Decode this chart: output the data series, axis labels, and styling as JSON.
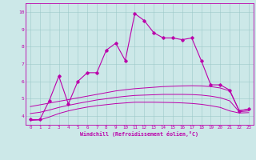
{
  "xlabel": "Windchill (Refroidissement éolien,°C)",
  "bg_color": "#cce8e8",
  "line_color": "#bb00aa",
  "xlim": [
    -0.5,
    23.5
  ],
  "ylim": [
    3.5,
    10.5
  ],
  "xticks": [
    0,
    1,
    2,
    3,
    4,
    5,
    6,
    7,
    8,
    9,
    10,
    11,
    12,
    13,
    14,
    15,
    16,
    17,
    18,
    19,
    20,
    21,
    22,
    23
  ],
  "yticks": [
    4,
    5,
    6,
    7,
    8,
    9,
    10
  ],
  "main_line_x": [
    0,
    1,
    2,
    3,
    4,
    5,
    6,
    7,
    8,
    9,
    10,
    11,
    12,
    13,
    14,
    15,
    16,
    17,
    18,
    19,
    20,
    21,
    22,
    23
  ],
  "main_line_y": [
    3.8,
    3.8,
    4.9,
    6.3,
    4.7,
    6.0,
    6.5,
    6.5,
    7.8,
    8.2,
    7.2,
    9.9,
    9.5,
    8.8,
    8.5,
    8.5,
    8.4,
    8.5,
    7.2,
    5.8,
    5.8,
    5.5,
    4.3,
    4.4
  ],
  "upper_band_x": [
    0,
    1,
    2,
    3,
    4,
    5,
    6,
    7,
    8,
    9,
    10,
    11,
    12,
    13,
    14,
    15,
    16,
    17,
    18,
    19,
    20,
    21,
    22,
    23
  ],
  "upper_band_y": [
    4.55,
    4.65,
    4.75,
    4.85,
    4.95,
    5.05,
    5.15,
    5.25,
    5.35,
    5.45,
    5.52,
    5.58,
    5.62,
    5.66,
    5.7,
    5.72,
    5.74,
    5.75,
    5.74,
    5.7,
    5.62,
    5.45,
    4.32,
    4.4
  ],
  "lower_band_x": [
    0,
    1,
    2,
    3,
    4,
    5,
    6,
    7,
    8,
    9,
    10,
    11,
    12,
    13,
    14,
    15,
    16,
    17,
    18,
    19,
    20,
    21,
    22,
    23
  ],
  "lower_band_y": [
    3.75,
    3.78,
    3.95,
    4.15,
    4.3,
    4.42,
    4.52,
    4.6,
    4.66,
    4.72,
    4.76,
    4.8,
    4.8,
    4.8,
    4.79,
    4.78,
    4.76,
    4.73,
    4.68,
    4.6,
    4.5,
    4.3,
    4.18,
    4.2
  ],
  "mid_band_x": [
    0,
    1,
    2,
    3,
    4,
    5,
    6,
    7,
    8,
    9,
    10,
    11,
    12,
    13,
    14,
    15,
    16,
    17,
    18,
    19,
    20,
    21,
    22,
    23
  ],
  "mid_band_y": [
    4.15,
    4.22,
    4.35,
    4.5,
    4.62,
    4.73,
    4.83,
    4.93,
    5.0,
    5.08,
    5.14,
    5.19,
    5.21,
    5.23,
    5.25,
    5.25,
    5.25,
    5.24,
    5.21,
    5.15,
    5.06,
    4.88,
    4.25,
    4.3
  ]
}
